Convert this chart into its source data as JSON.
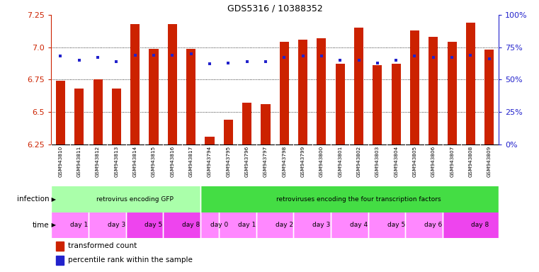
{
  "title": "GDS5316 / 10388352",
  "samples": [
    "GSM943810",
    "GSM943811",
    "GSM943812",
    "GSM943813",
    "GSM943814",
    "GSM943815",
    "GSM943816",
    "GSM943817",
    "GSM943794",
    "GSM943795",
    "GSM943796",
    "GSM943797",
    "GSM943798",
    "GSM943799",
    "GSM943800",
    "GSM943801",
    "GSM943802",
    "GSM943803",
    "GSM943804",
    "GSM943805",
    "GSM943806",
    "GSM943807",
    "GSM943808",
    "GSM943809"
  ],
  "red_values": [
    6.74,
    6.68,
    6.75,
    6.68,
    7.18,
    6.99,
    7.18,
    6.99,
    6.31,
    6.44,
    6.57,
    6.56,
    7.04,
    7.06,
    7.07,
    6.87,
    7.15,
    6.86,
    6.87,
    7.13,
    7.08,
    7.04,
    7.19,
    6.98
  ],
  "blue_values": [
    68,
    65,
    67,
    64,
    69,
    69,
    69,
    70,
    62,
    63,
    64,
    64,
    67,
    68,
    68,
    65,
    65,
    63,
    65,
    68,
    67,
    67,
    69,
    66
  ],
  "ylim_left": [
    6.25,
    7.25
  ],
  "ylim_right": [
    0,
    100
  ],
  "yticks_left": [
    6.25,
    6.5,
    6.75,
    7.0,
    7.25
  ],
  "yticks_right": [
    0,
    25,
    50,
    75,
    100
  ],
  "grid_lines": [
    6.5,
    6.75,
    7.0
  ],
  "infection_groups": [
    {
      "label": "retrovirus encoding GFP",
      "start": 0,
      "end": 8,
      "color": "#aaffaa"
    },
    {
      "label": "retroviruses encoding the four transcription factors",
      "start": 8,
      "end": 24,
      "color": "#44dd44"
    }
  ],
  "time_groups": [
    {
      "label": "day 1",
      "start": 0,
      "end": 2,
      "color": "#ff88ff"
    },
    {
      "label": "day 3",
      "start": 2,
      "end": 4,
      "color": "#ff88ff"
    },
    {
      "label": "day 5",
      "start": 4,
      "end": 6,
      "color": "#ee44ee"
    },
    {
      "label": "day 8",
      "start": 6,
      "end": 8,
      "color": "#ee44ee"
    },
    {
      "label": "day 0",
      "start": 8,
      "end": 9,
      "color": "#ff88ff"
    },
    {
      "label": "day 1",
      "start": 9,
      "end": 11,
      "color": "#ff88ff"
    },
    {
      "label": "day 2",
      "start": 11,
      "end": 13,
      "color": "#ff88ff"
    },
    {
      "label": "day 3",
      "start": 13,
      "end": 15,
      "color": "#ff88ff"
    },
    {
      "label": "day 4",
      "start": 15,
      "end": 17,
      "color": "#ff88ff"
    },
    {
      "label": "day 5",
      "start": 17,
      "end": 19,
      "color": "#ff88ff"
    },
    {
      "label": "day 6",
      "start": 19,
      "end": 21,
      "color": "#ff88ff"
    },
    {
      "label": "day 8",
      "start": 21,
      "end": 24,
      "color": "#ee44ee"
    }
  ],
  "bar_color": "#cc2200",
  "blue_color": "#2222cc",
  "bar_width": 0.5,
  "legend_red_label": "transformed count",
  "legend_blue_label": "percentile rank within the sample",
  "left_axis_color": "#cc2200",
  "right_axis_color": "#2222cc",
  "bg_color": "#ffffff",
  "tick_bg_color": "#cccccc",
  "infection_label": "infection",
  "time_label": "time"
}
